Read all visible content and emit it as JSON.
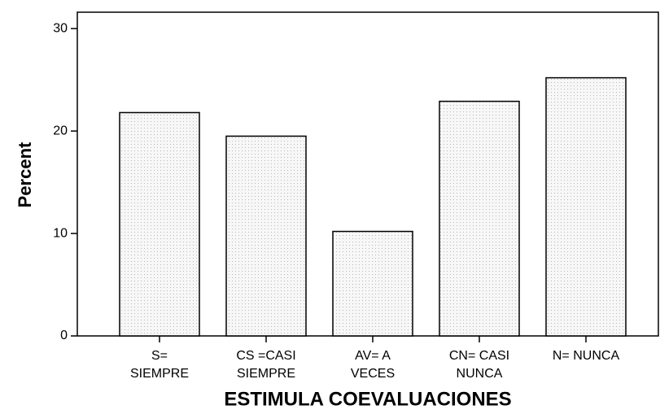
{
  "chart_data": {
    "type": "bar",
    "x_label": "ESTIMULA COEVALUACIONES",
    "y_label": "Percent",
    "categories": [
      [
        "S=",
        "SIEMPRE"
      ],
      [
        "CS =CASI",
        "SIEMPRE"
      ],
      [
        "AV= A",
        "VECES"
      ],
      [
        "CN= CASI",
        "NUNCA"
      ],
      [
        "N= NUNCA"
      ]
    ],
    "values": [
      21.8,
      19.5,
      10.2,
      22.9,
      25.2
    ],
    "color": "#f4f4f4",
    "ylim": [
      0,
      31.6
    ],
    "yticks": [
      0,
      10,
      20,
      30
    ]
  }
}
